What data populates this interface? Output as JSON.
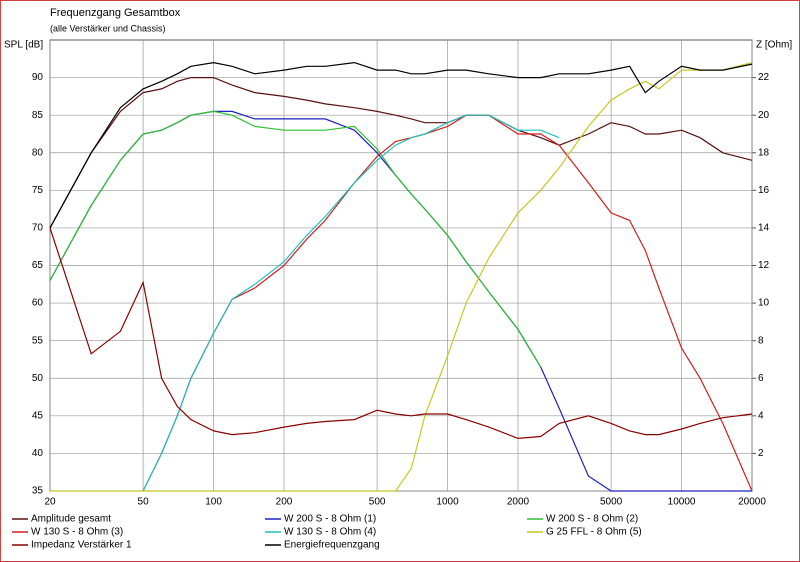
{
  "chart_data": {
    "type": "line",
    "title": "Frequenzgang Gesamtbox",
    "subtitle": "(alle Verstärker und Chassis)",
    "y_label": "SPL [dB]",
    "y2_label": "Z [Ohm]",
    "x_scale": "log",
    "grid": true,
    "legend": "bottom",
    "x": [
      20,
      30,
      40,
      50,
      60,
      70,
      80,
      100,
      120,
      150,
      200,
      250,
      300,
      400,
      500,
      600,
      700,
      800,
      1000,
      1200,
      1500,
      2000,
      2500,
      3000,
      4000,
      5000,
      6000,
      7000,
      8000,
      10000,
      12000,
      15000,
      20000
    ],
    "xlim": [
      20,
      20000
    ],
    "xticks": [
      20,
      50,
      100,
      200,
      500,
      1000,
      2000,
      5000,
      10000,
      20000
    ],
    "ylim": [
      35,
      95
    ],
    "yticks": [
      35,
      40,
      45,
      50,
      55,
      60,
      65,
      70,
      75,
      80,
      85,
      90
    ],
    "y2lim": [
      0,
      24
    ],
    "y2ticks": [
      2,
      4,
      6,
      8,
      10,
      12,
      14,
      16,
      18,
      20,
      22
    ],
    "series": [
      {
        "name": "Amplitude gesamt",
        "color": "#5a1010",
        "values": [
          70,
          80,
          85.5,
          88,
          88.5,
          89.5,
          90,
          90,
          89,
          88,
          87.5,
          87,
          86.5,
          86,
          85.5,
          85,
          84.5,
          84,
          84,
          85,
          85,
          83,
          82,
          81,
          82.5,
          84,
          83.5,
          82.5,
          82.5,
          83,
          82,
          80,
          79
        ]
      },
      {
        "name": "W 200 S - 8 Ohm (1)",
        "color": "#2020c0",
        "values": [
          63,
          73,
          79,
          82.5,
          83,
          84,
          85,
          85.5,
          85.5,
          84.5,
          84.5,
          84.5,
          84.5,
          83,
          80,
          77,
          74.5,
          72.5,
          69,
          65.5,
          61.5,
          56.5,
          51.5,
          46,
          37,
          35,
          35,
          35,
          35,
          35,
          35,
          35,
          35
        ]
      },
      {
        "name": "W 200 S - 8 Ohm (2)",
        "color": "#30c030",
        "values": [
          63,
          73,
          79,
          82.5,
          83,
          84,
          85,
          85.5,
          85,
          83.5,
          83,
          83,
          83,
          83.5,
          80.5,
          77,
          74.5,
          72.5,
          69,
          65.5,
          61.5,
          56.5,
          51.5,
          null,
          null,
          null,
          null,
          null,
          null,
          null,
          null,
          null,
          null
        ]
      },
      {
        "name": "W 130 S - 8 Ohm (3)",
        "color": "#d02020",
        "values": [
          null,
          null,
          null,
          35,
          40,
          45,
          50,
          56,
          60.5,
          62,
          65,
          68.5,
          71,
          76,
          79.5,
          81.5,
          82,
          82.5,
          83.5,
          85,
          85,
          82.5,
          82.5,
          81,
          76,
          72,
          71,
          67,
          62,
          54,
          50,
          44,
          35
        ]
      },
      {
        "name": "W 130 S - 8 Ohm (4)",
        "color": "#20c0c0",
        "values": [
          null,
          null,
          null,
          35,
          40,
          45,
          50,
          56,
          60.5,
          62.5,
          65.5,
          69,
          71.5,
          76,
          79,
          81,
          82,
          82.5,
          84,
          85,
          85,
          83,
          83,
          82,
          null,
          null,
          null,
          null,
          null,
          null,
          null,
          null,
          null
        ]
      },
      {
        "name": "G 25 FFL - 8 Ohm (5)",
        "color": "#c8c820",
        "values": [
          35,
          35,
          35,
          35,
          35,
          35,
          35,
          35,
          35,
          35,
          35,
          35,
          35,
          35,
          35,
          35,
          38,
          45,
          53,
          60,
          66,
          72,
          75,
          78,
          83.5,
          87,
          88.5,
          89.5,
          88.5,
          91,
          91,
          91,
          92
        ]
      },
      {
        "name": "Impedanz Verstärker 1",
        "color": "#8b0000",
        "axis": "y2",
        "values": [
          14,
          7.3,
          8.5,
          11.1,
          6,
          4.5,
          3.8,
          3.2,
          3,
          3.1,
          3.4,
          3.6,
          3.7,
          3.8,
          4.3,
          4.1,
          4,
          4.1,
          4.1,
          3.8,
          3.4,
          2.8,
          2.9,
          3.6,
          4,
          3.6,
          3.2,
          3,
          3,
          3.3,
          3.6,
          3.9,
          4.1
        ]
      },
      {
        "name": "Energiefrequenzgang",
        "color": "#000000",
        "values": [
          70,
          80,
          86,
          88.5,
          89.5,
          90.5,
          91.5,
          92,
          91.5,
          90.5,
          91,
          91.5,
          91.5,
          92,
          91,
          91,
          90.5,
          90.5,
          91,
          91,
          90.5,
          90,
          90,
          90.5,
          90.5,
          91,
          91.5,
          88,
          89.5,
          91.5,
          91,
          91,
          91.8
        ]
      }
    ]
  }
}
